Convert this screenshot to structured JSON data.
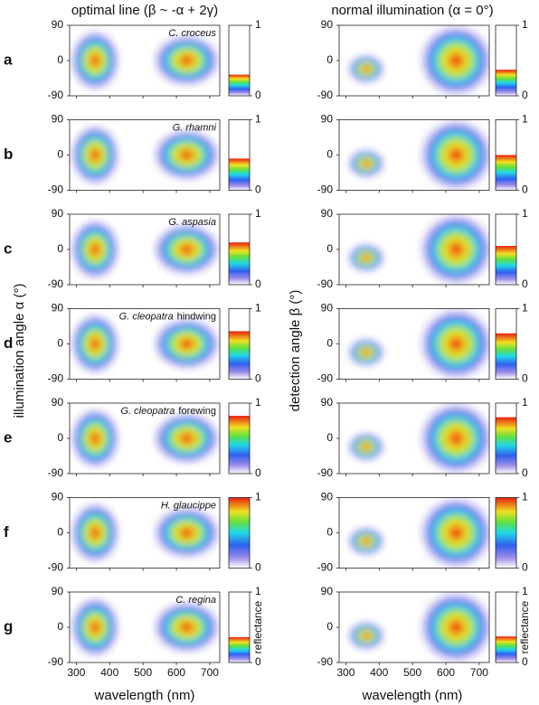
{
  "chart_data": {
    "type": "heatmap",
    "columns": [
      {
        "title": "optimal line (β ~ -α + 2γ)",
        "y_label": "illumination angle α (°)"
      },
      {
        "title": "normal illumination (α = 0°)",
        "y_label": "detection angle β (°)"
      }
    ],
    "x_label": "wavelength (nm)",
    "xlim": [
      280,
      730
    ],
    "xticks": [
      300,
      400,
      500,
      600,
      700
    ],
    "ylim": [
      -90,
      90
    ],
    "yticks": [
      -90,
      0,
      90
    ],
    "colorbar_ticks": [
      0,
      1
    ],
    "colorbar_label": "reflectance",
    "rows": [
      {
        "label": "a",
        "species": "C. croceus",
        "colorbar_levels": [
          0.3,
          0.37
        ]
      },
      {
        "label": "b",
        "species": "G. rhamni",
        "colorbar_levels": [
          0.45,
          0.5
        ]
      },
      {
        "label": "c",
        "species": "G. aspasia",
        "colorbar_levels": [
          0.6,
          0.55
        ]
      },
      {
        "label": "d",
        "species": "G. cleopatra",
        "part": "hindwing",
        "colorbar_levels": [
          0.68,
          0.65
        ]
      },
      {
        "label": "e",
        "species": "G. cleopatra",
        "part": "forewing",
        "colorbar_levels": [
          0.82,
          0.8
        ]
      },
      {
        "label": "f",
        "species": "H. glaucippe",
        "colorbar_levels": [
          1,
          1
        ]
      },
      {
        "label": "g",
        "species": "C. regina",
        "colorbar_levels": [
          0.36,
          0.37
        ]
      }
    ]
  }
}
